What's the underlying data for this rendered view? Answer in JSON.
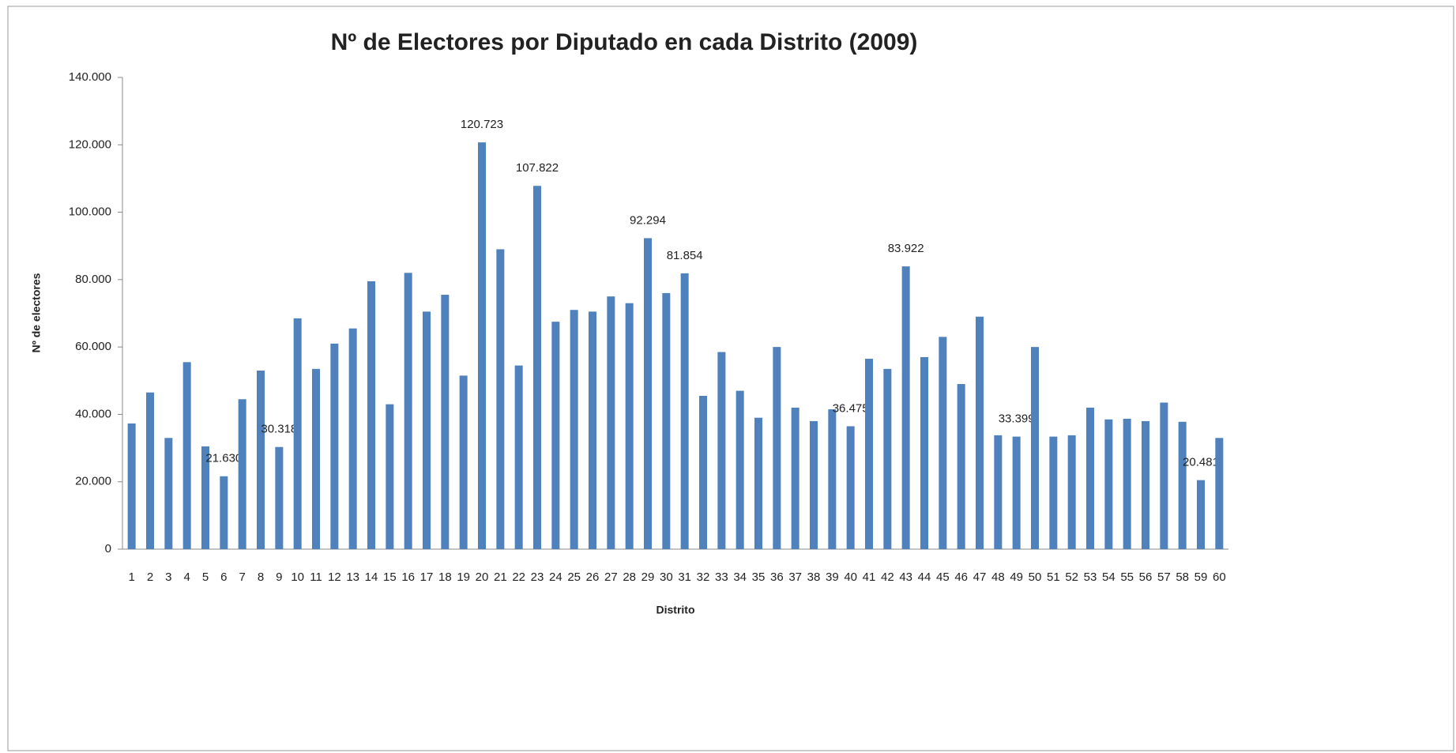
{
  "chart_data": {
    "type": "bar",
    "title": "Nº de Electores por Diputado en cada Distrito (2009)",
    "x_label": "Distrito",
    "y_label": "Nº de electores",
    "color": "#4f81bd",
    "categories": [
      "1",
      "2",
      "3",
      "4",
      "5",
      "6",
      "7",
      "8",
      "9",
      "10",
      "11",
      "12",
      "13",
      "14",
      "15",
      "16",
      "17",
      "18",
      "19",
      "20",
      "21",
      "22",
      "23",
      "24",
      "25",
      "26",
      "27",
      "28",
      "29",
      "30",
      "31",
      "32",
      "33",
      "34",
      "35",
      "36",
      "37",
      "38",
      "39",
      "40",
      "41",
      "42",
      "43",
      "44",
      "45",
      "46",
      "47",
      "48",
      "49",
      "50",
      "51",
      "52",
      "53",
      "54",
      "55",
      "56",
      "57",
      "58",
      "59",
      "60"
    ],
    "values": [
      37300,
      46500,
      33000,
      55500,
      30500,
      21630,
      44500,
      53000,
      30318,
      68500,
      53500,
      61000,
      65500,
      79500,
      43000,
      82000,
      70500,
      75500,
      51500,
      120723,
      89000,
      54500,
      107822,
      67500,
      71000,
      70500,
      75000,
      73000,
      92294,
      76000,
      81854,
      45500,
      58500,
      47000,
      39000,
      60000,
      42000,
      38000,
      41500,
      36475,
      56500,
      53500,
      83922,
      57000,
      63000,
      49000,
      69000,
      33800,
      33399,
      60000,
      33400,
      33800,
      42000,
      38500,
      38700,
      38000,
      43500,
      37800,
      20481,
      33000
    ],
    "value_labels": [
      null,
      null,
      null,
      null,
      null,
      "21.630",
      null,
      null,
      "30.318",
      null,
      null,
      null,
      null,
      null,
      null,
      null,
      null,
      null,
      null,
      "120.723",
      null,
      null,
      "107.822",
      null,
      null,
      null,
      null,
      null,
      "92.294",
      null,
      "81.854",
      null,
      null,
      null,
      null,
      null,
      null,
      null,
      null,
      "36.475",
      null,
      null,
      "83.922",
      null,
      null,
      null,
      null,
      null,
      "33.399",
      null,
      null,
      null,
      null,
      null,
      null,
      null,
      null,
      null,
      "20.481",
      null
    ],
    "ylim": [
      0,
      140000
    ],
    "yticks": [
      0,
      {
        "value": 20000,
        "label": "20.000"
      },
      {
        "value": 40000,
        "label": "40.000"
      },
      {
        "value": 60000,
        "label": "60.000"
      },
      {
        "value": 80000,
        "label": "80.000"
      },
      {
        "value": 100000,
        "label": "100.000"
      },
      {
        "value": 120000,
        "label": "120.000"
      },
      {
        "value": 140000,
        "label": "140.000"
      }
    ],
    "grid": false
  }
}
